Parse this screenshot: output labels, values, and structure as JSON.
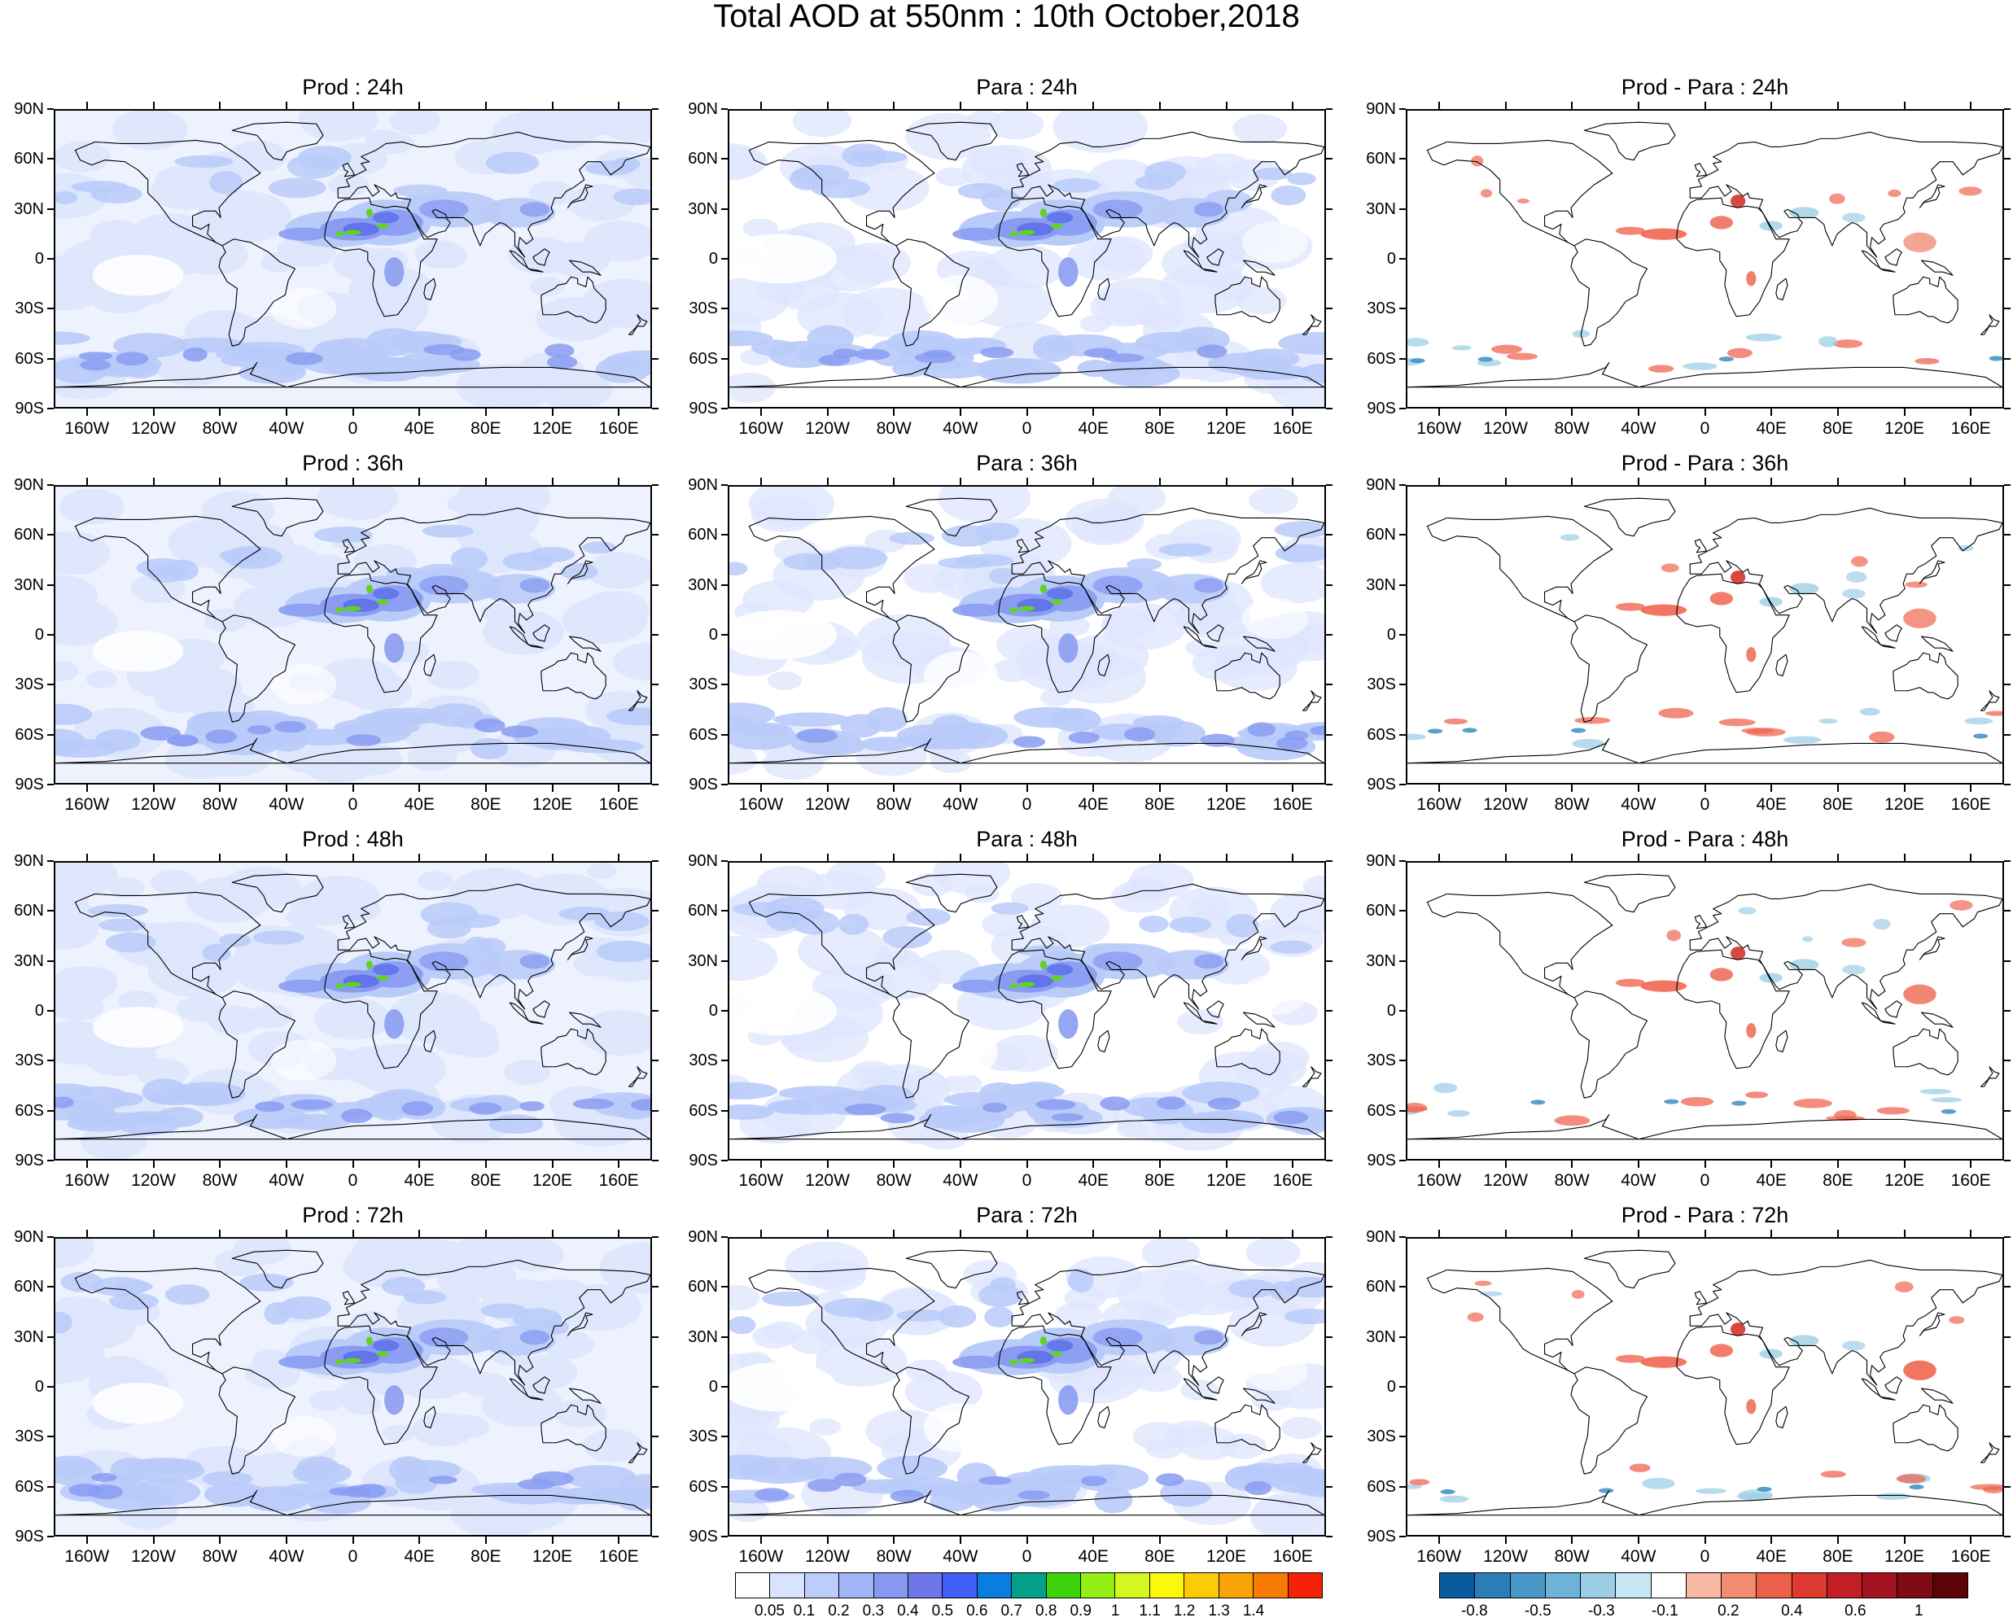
{
  "title": "Total AOD at 550nm : 10th October,2018",
  "panels": [
    {
      "title": "Prod : 24h",
      "kind": "aod"
    },
    {
      "title": "Para : 24h",
      "kind": "aod"
    },
    {
      "title": "Prod - Para : 24h",
      "kind": "diff"
    },
    {
      "title": "Prod : 36h",
      "kind": "aod"
    },
    {
      "title": "Para : 36h",
      "kind": "aod"
    },
    {
      "title": "Prod - Para : 36h",
      "kind": "diff"
    },
    {
      "title": "Prod : 48h",
      "kind": "aod"
    },
    {
      "title": "Para : 48h",
      "kind": "aod"
    },
    {
      "title": "Prod - Para : 48h",
      "kind": "diff"
    },
    {
      "title": "Prod : 72h",
      "kind": "aod"
    },
    {
      "title": "Para : 72h",
      "kind": "aod"
    },
    {
      "title": "Prod - Para : 72h",
      "kind": "diff"
    }
  ],
  "lat_labels": [
    "90N",
    "60N",
    "30N",
    "0",
    "30S",
    "60S",
    "90S"
  ],
  "lon_labels": [
    "160W",
    "120W",
    "80W",
    "40W",
    "0",
    "40E",
    "80E",
    "120E",
    "160E"
  ],
  "aod_colorbar": {
    "labels": [
      "0.05",
      "0.1",
      "0.2",
      "0.3",
      "0.4",
      "0.5",
      "0.6",
      "0.7",
      "0.8",
      "0.9",
      "1",
      "1.1",
      "1.2",
      "1.3",
      "1.4"
    ],
    "colors": [
      "#ffffff",
      "#d8e3ff",
      "#bccdfb",
      "#a0b6f7",
      "#8798f2",
      "#6e76ea",
      "#3f5ff7",
      "#0a7de0",
      "#04a08b",
      "#3ed20b",
      "#93ee14",
      "#d4f81f",
      "#fcf80a",
      "#fbcb06",
      "#f9a404",
      "#f77a04",
      "#f42208"
    ]
  },
  "diff_colorbar": {
    "labels": [
      "-0.8",
      "-0.5",
      "-0.3",
      "-0.1",
      "0.2",
      "0.4",
      "0.6",
      "1"
    ],
    "colors": [
      "#0a5aa0",
      "#2a7db6",
      "#4a98c8",
      "#6fb2d8",
      "#9ccde6",
      "#c7e8f3",
      "#ffffff",
      "#f8b8a4",
      "#f28b72",
      "#ec5f48",
      "#dd3a30",
      "#c41f25",
      "#a5121f",
      "#7e0b14",
      "#5b0306"
    ]
  },
  "colors": {
    "aod_light": "#dde6fd",
    "aod_mid": "#b9cbf9",
    "aod_dark": "#8a9cf1",
    "aod_high": "#6275ea",
    "aod_green": "#5ed61a",
    "diff_red": "#ef6650",
    "diff_red_dark": "#d2332a",
    "diff_blue": "#9ecfe5",
    "diff_blue_dark": "#3d8ec1",
    "coast": "#000000"
  }
}
